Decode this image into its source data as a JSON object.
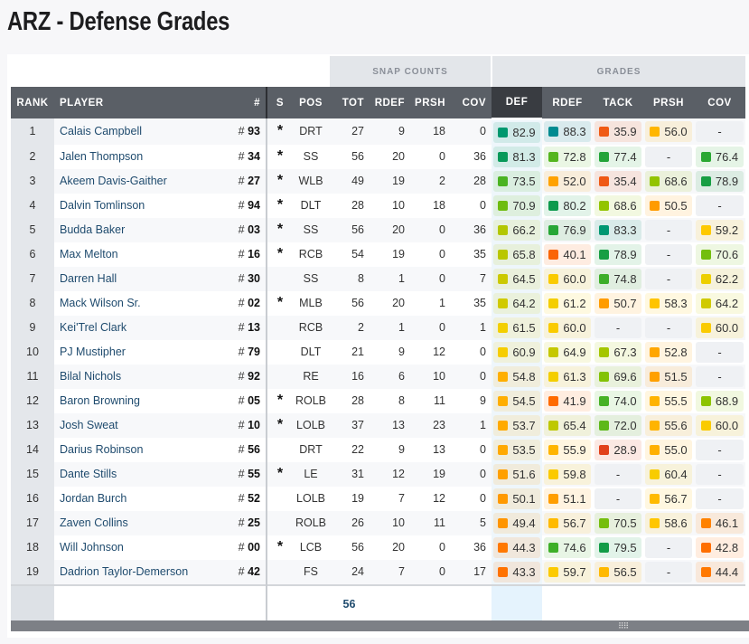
{
  "title": "ARZ - Defense Grades",
  "groups": {
    "snap": "SNAP COUNTS",
    "grades": "GRADES"
  },
  "columns": [
    "RANK",
    "PLAYER",
    "#",
    "S",
    "POS",
    "TOT",
    "RDEF",
    "PRSH",
    "COV",
    "DEF",
    "RDEF",
    "TACK",
    "PRSH",
    "COV"
  ],
  "sorted_column": "DEF",
  "rows": [
    [
      "1",
      "Calais Campbell",
      "93",
      "*",
      "DRT",
      "27",
      "9",
      "18",
      "0",
      "82.9",
      "88.3",
      "35.9",
      "56.0",
      "-"
    ],
    [
      "2",
      "Jalen Thompson",
      "34",
      "*",
      "SS",
      "56",
      "20",
      "0",
      "36",
      "81.3",
      "72.8",
      "77.4",
      "-",
      "76.4"
    ],
    [
      "3",
      "Akeem Davis-Gaither",
      "27",
      "*",
      "WLB",
      "49",
      "19",
      "2",
      "28",
      "73.5",
      "52.0",
      "35.4",
      "68.6",
      "78.9"
    ],
    [
      "4",
      "Dalvin Tomlinson",
      "94",
      "*",
      "DLT",
      "28",
      "10",
      "18",
      "0",
      "70.9",
      "80.2",
      "68.6",
      "50.5",
      "-"
    ],
    [
      "5",
      "Budda Baker",
      "03",
      "*",
      "SS",
      "56",
      "20",
      "0",
      "36",
      "66.2",
      "76.9",
      "83.3",
      "-",
      "59.2"
    ],
    [
      "6",
      "Max Melton",
      "16",
      "*",
      "RCB",
      "54",
      "19",
      "0",
      "35",
      "65.8",
      "40.1",
      "78.9",
      "-",
      "70.6"
    ],
    [
      "7",
      "Darren Hall",
      "30",
      "",
      "SS",
      "8",
      "1",
      "0",
      "7",
      "64.5",
      "60.0",
      "74.8",
      "-",
      "62.2"
    ],
    [
      "8",
      "Mack Wilson Sr.",
      "02",
      "*",
      "MLB",
      "56",
      "20",
      "1",
      "35",
      "64.2",
      "61.2",
      "50.7",
      "58.3",
      "64.2"
    ],
    [
      "9",
      "Kei'Trel Clark",
      "13",
      "",
      "RCB",
      "2",
      "1",
      "0",
      "1",
      "61.5",
      "60.0",
      "-",
      "-",
      "60.0"
    ],
    [
      "10",
      "PJ Mustipher",
      "79",
      "",
      "DLT",
      "21",
      "9",
      "12",
      "0",
      "60.9",
      "64.9",
      "67.3",
      "52.8",
      "-"
    ],
    [
      "11",
      "Bilal Nichols",
      "92",
      "",
      "RE",
      "16",
      "6",
      "10",
      "0",
      "54.8",
      "61.3",
      "69.6",
      "51.5",
      "-"
    ],
    [
      "12",
      "Baron Browning",
      "05",
      "*",
      "ROLB",
      "28",
      "8",
      "11",
      "9",
      "54.5",
      "41.9",
      "74.0",
      "55.5",
      "68.9"
    ],
    [
      "13",
      "Josh Sweat",
      "10",
      "*",
      "LOLB",
      "37",
      "13",
      "23",
      "1",
      "53.7",
      "65.4",
      "72.0",
      "55.6",
      "60.0"
    ],
    [
      "14",
      "Darius Robinson",
      "56",
      "",
      "DRT",
      "22",
      "9",
      "13",
      "0",
      "53.5",
      "55.9",
      "28.9",
      "55.0",
      "-"
    ],
    [
      "15",
      "Dante Stills",
      "55",
      "*",
      "LE",
      "31",
      "12",
      "19",
      "0",
      "51.6",
      "59.8",
      "-",
      "60.4",
      "-"
    ],
    [
      "16",
      "Jordan Burch",
      "52",
      "",
      "LOLB",
      "19",
      "7",
      "12",
      "0",
      "50.1",
      "51.1",
      "-",
      "56.7",
      "-"
    ],
    [
      "17",
      "Zaven Collins",
      "25",
      "",
      "ROLB",
      "26",
      "10",
      "11",
      "5",
      "49.4",
      "56.7",
      "70.5",
      "58.6",
      "46.1"
    ],
    [
      "18",
      "Will Johnson",
      "00",
      "*",
      "LCB",
      "56",
      "20",
      "0",
      "36",
      "44.3",
      "74.6",
      "79.5",
      "-",
      "42.8"
    ],
    [
      "19",
      "Dadrion Taylor-Demerson",
      "42",
      "",
      "FS",
      "24",
      "7",
      "0",
      "17",
      "43.3",
      "59.7",
      "56.5",
      "-",
      "44.4"
    ]
  ],
  "footer": {
    "tot": "56"
  },
  "grade_color_scale": {
    "low": "#d9331f",
    "mid": "#ffc600",
    "high": "#008a90"
  }
}
